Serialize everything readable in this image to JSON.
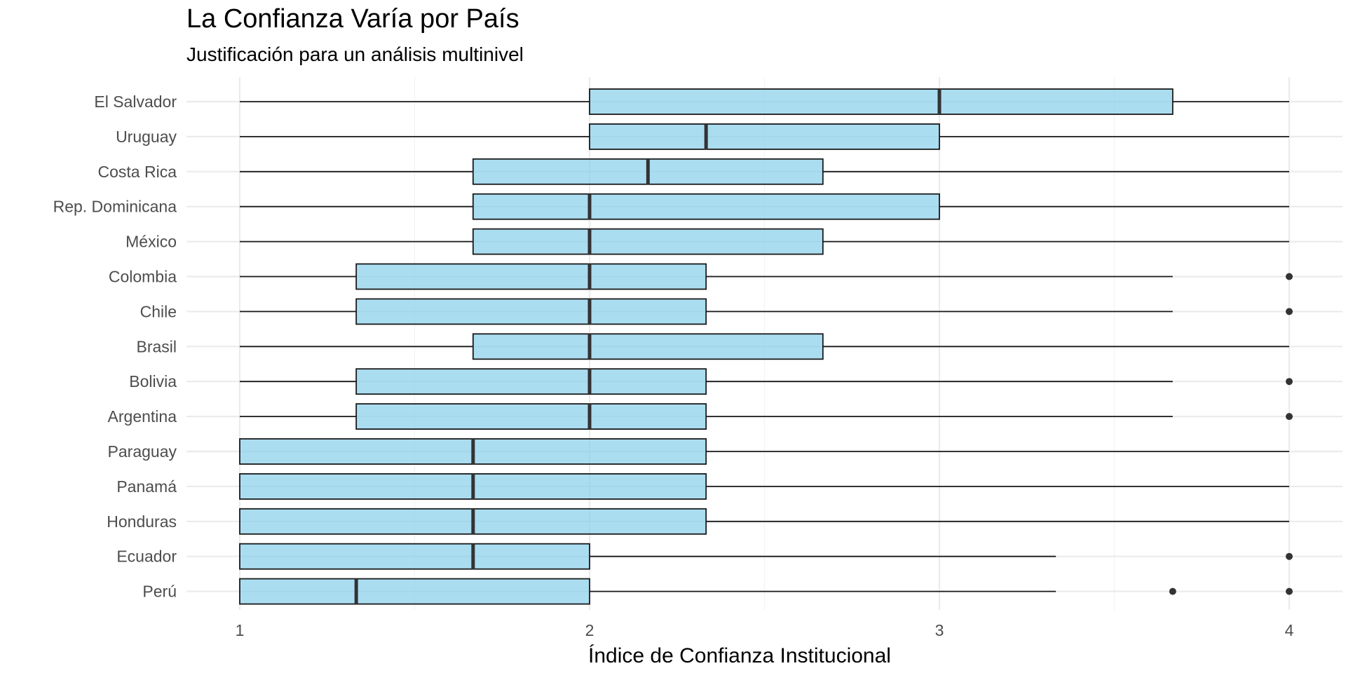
{
  "chart_data": {
    "type": "boxplot",
    "orientation": "horizontal",
    "title": "La Confianza Varía por País",
    "subtitle": "Justificación para un análisis multinivel",
    "xlabel": "Índice de Confianza Institucional",
    "ylabel": "",
    "xlim": [
      0.85,
      4.15
    ],
    "xticks": [
      1,
      2,
      3,
      4
    ],
    "xtick_labels": [
      "1",
      "2",
      "3",
      "4"
    ],
    "grid": true,
    "colors": {
      "box_fill": "#87CEEB",
      "box_stroke": "#1a1a1a",
      "grid": "#ebebeb",
      "text": "#4d4d4d"
    },
    "categories": [
      {
        "name": "El Salvador",
        "whisker_low": 1,
        "q1": 2,
        "median": 3,
        "q3": 3.667,
        "whisker_high": 4,
        "outliers": []
      },
      {
        "name": "Uruguay",
        "whisker_low": 1,
        "q1": 2,
        "median": 2.333,
        "q3": 3,
        "whisker_high": 4,
        "outliers": []
      },
      {
        "name": "Costa Rica",
        "whisker_low": 1,
        "q1": 1.667,
        "median": 2.167,
        "q3": 2.667,
        "whisker_high": 4,
        "outliers": []
      },
      {
        "name": "Rep. Dominicana",
        "whisker_low": 1,
        "q1": 1.667,
        "median": 2,
        "q3": 3,
        "whisker_high": 4,
        "outliers": []
      },
      {
        "name": "México",
        "whisker_low": 1,
        "q1": 1.667,
        "median": 2,
        "q3": 2.667,
        "whisker_high": 4,
        "outliers": []
      },
      {
        "name": "Colombia",
        "whisker_low": 1,
        "q1": 1.333,
        "median": 2,
        "q3": 2.333,
        "whisker_high": 3.667,
        "outliers": [
          4
        ]
      },
      {
        "name": "Chile",
        "whisker_low": 1,
        "q1": 1.333,
        "median": 2,
        "q3": 2.333,
        "whisker_high": 3.667,
        "outliers": [
          4
        ]
      },
      {
        "name": "Brasil",
        "whisker_low": 1,
        "q1": 1.667,
        "median": 2,
        "q3": 2.667,
        "whisker_high": 4,
        "outliers": []
      },
      {
        "name": "Bolivia",
        "whisker_low": 1,
        "q1": 1.333,
        "median": 2,
        "q3": 2.333,
        "whisker_high": 3.667,
        "outliers": [
          4
        ]
      },
      {
        "name": "Argentina",
        "whisker_low": 1,
        "q1": 1.333,
        "median": 2,
        "q3": 2.333,
        "whisker_high": 3.667,
        "outliers": [
          4
        ]
      },
      {
        "name": "Paraguay",
        "whisker_low": 1,
        "q1": 1,
        "median": 1.667,
        "q3": 2.333,
        "whisker_high": 4,
        "outliers": []
      },
      {
        "name": "Panamá",
        "whisker_low": 1,
        "q1": 1,
        "median": 1.667,
        "q3": 2.333,
        "whisker_high": 4,
        "outliers": []
      },
      {
        "name": "Honduras",
        "whisker_low": 1,
        "q1": 1,
        "median": 1.667,
        "q3": 2.333,
        "whisker_high": 4,
        "outliers": []
      },
      {
        "name": "Ecuador",
        "whisker_low": 1,
        "q1": 1,
        "median": 1.667,
        "q3": 2,
        "whisker_high": 3.333,
        "outliers": [
          4
        ]
      },
      {
        "name": "Perú",
        "whisker_low": 1,
        "q1": 1,
        "median": 1.333,
        "q3": 2,
        "whisker_high": 3.333,
        "outliers": [
          3.667,
          4
        ]
      }
    ]
  }
}
